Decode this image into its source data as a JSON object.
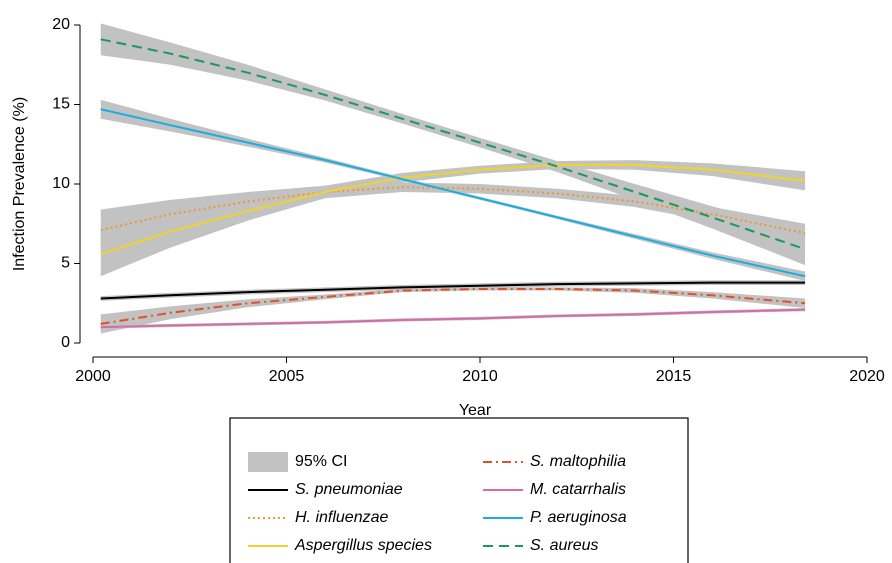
{
  "chart_data": {
    "type": "line",
    "xlabel": "Year",
    "ylabel": "Infection Prevalence (%)",
    "x": [
      2000.2,
      2002,
      2004,
      2006,
      2008,
      2010,
      2012,
      2014,
      2016,
      2018.4
    ],
    "xlim": [
      2000,
      2020
    ],
    "xticks": [
      2000,
      2005,
      2010,
      2015,
      2020
    ],
    "ylim": [
      0,
      20
    ],
    "yticks": [
      0,
      5,
      10,
      15,
      20
    ],
    "ci_label": "95% CI",
    "ci_color": "#c2c2c2",
    "series": [
      {
        "name": "S. pneumoniae",
        "color": "#000000",
        "style": "solid",
        "values": [
          2.8,
          3.0,
          3.2,
          3.35,
          3.5,
          3.6,
          3.7,
          3.75,
          3.8,
          3.8
        ],
        "ci_lower": [
          2.65,
          2.85,
          3.05,
          3.2,
          3.35,
          3.45,
          3.55,
          3.6,
          3.65,
          3.65
        ],
        "ci_upper": [
          2.95,
          3.15,
          3.35,
          3.5,
          3.65,
          3.75,
          3.85,
          3.9,
          3.95,
          3.95
        ]
      },
      {
        "name": "H. influenzae",
        "color": "#f0962a",
        "style": "dotted",
        "values": [
          7.1,
          8.1,
          8.9,
          9.5,
          9.8,
          9.7,
          9.4,
          8.9,
          8.1,
          6.9
        ],
        "ci_lower": [
          5.8,
          7.2,
          8.3,
          9.1,
          9.5,
          9.4,
          9.1,
          8.55,
          7.65,
          6.3
        ],
        "ci_upper": [
          8.4,
          9.0,
          9.5,
          9.9,
          10.1,
          10.0,
          9.7,
          9.25,
          8.55,
          7.5
        ]
      },
      {
        "name": "Aspergillus species",
        "color": "#f0d42a",
        "style": "solid",
        "values": [
          5.6,
          7.0,
          8.3,
          9.5,
          10.4,
          10.9,
          11.2,
          11.2,
          10.9,
          10.2
        ],
        "ci_lower": [
          4.2,
          6.0,
          7.7,
          9.1,
          10.1,
          10.65,
          10.95,
          10.9,
          10.5,
          9.6
        ],
        "ci_upper": [
          7.0,
          8.0,
          8.9,
          9.9,
          10.7,
          11.15,
          11.45,
          11.5,
          11.3,
          10.8
        ]
      },
      {
        "name": "S. maltophilia",
        "color": "#e0502a",
        "style": "dashdot",
        "values": [
          1.2,
          1.9,
          2.5,
          2.9,
          3.3,
          3.4,
          3.4,
          3.3,
          3.0,
          2.5
        ],
        "ci_lower": [
          0.6,
          1.5,
          2.25,
          2.75,
          3.2,
          3.3,
          3.3,
          3.15,
          2.8,
          2.2
        ],
        "ci_upper": [
          1.8,
          2.3,
          2.75,
          3.05,
          3.4,
          3.5,
          3.5,
          3.45,
          3.2,
          2.8
        ]
      },
      {
        "name": "M. catarrhalis",
        "color": "#d86aa8",
        "style": "solid",
        "values": [
          1.0,
          1.1,
          1.2,
          1.3,
          1.45,
          1.55,
          1.7,
          1.8,
          1.95,
          2.1
        ],
        "ci_lower": [
          0.9,
          1.0,
          1.1,
          1.2,
          1.35,
          1.45,
          1.6,
          1.7,
          1.85,
          2.0
        ],
        "ci_upper": [
          1.1,
          1.2,
          1.3,
          1.4,
          1.55,
          1.65,
          1.8,
          1.9,
          2.05,
          2.2
        ]
      },
      {
        "name": "P. aeruginosa",
        "color": "#1aaee0",
        "style": "solid",
        "values": [
          14.7,
          13.7,
          12.6,
          11.5,
          10.3,
          9.1,
          7.9,
          6.7,
          5.5,
          4.2
        ],
        "ci_lower": [
          14.1,
          13.3,
          12.35,
          11.35,
          10.2,
          9.0,
          7.8,
          6.55,
          5.3,
          3.9
        ],
        "ci_upper": [
          15.3,
          14.1,
          12.85,
          11.65,
          10.4,
          9.2,
          8.0,
          6.85,
          5.7,
          4.5
        ]
      },
      {
        "name": "S. aureus",
        "color": "#1a9a5a",
        "style": "dashed",
        "values": [
          19.1,
          18.2,
          17.0,
          15.6,
          14.1,
          12.6,
          11.1,
          9.5,
          7.9,
          5.9
        ],
        "ci_lower": [
          18.1,
          17.5,
          16.5,
          15.25,
          13.8,
          12.3,
          10.75,
          9.0,
          7.2,
          4.9
        ],
        "ci_upper": [
          20.1,
          18.9,
          17.5,
          15.95,
          14.4,
          12.9,
          11.45,
          10.0,
          8.6,
          6.9
        ]
      }
    ]
  }
}
